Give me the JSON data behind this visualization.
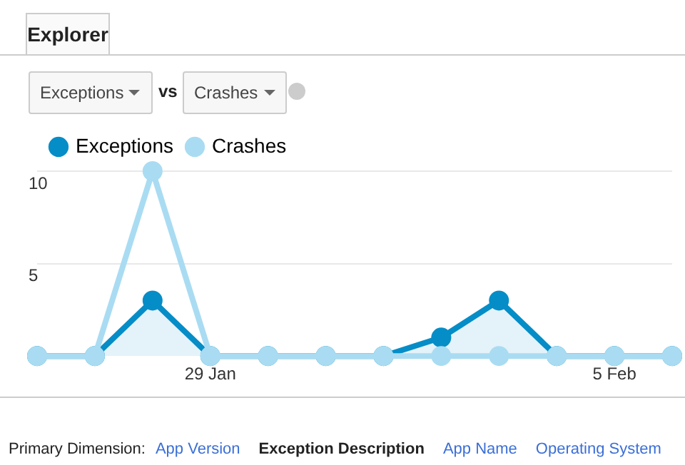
{
  "chart_data": {
    "type": "line",
    "annotations": [
      "Explorer",
      "Exceptions",
      "vs",
      "Crashes",
      "Primary Dimension:",
      "App Version",
      "Exception Description",
      "App Name",
      "Operating System"
    ],
    "categories": [
      null,
      null,
      null,
      "29 Jan",
      null,
      null,
      null,
      null,
      null,
      null,
      "5 Feb",
      null
    ],
    "series": [
      {
        "name": "Exceptions",
        "type": "area",
        "color": "#058dc7",
        "values": [
          0,
          0,
          3,
          0,
          0,
          0,
          0,
          1,
          3,
          0,
          0,
          0
        ]
      },
      {
        "name": "Crashes",
        "color": "#a9dcf2",
        "values": [
          0,
          0,
          10,
          0,
          0,
          0,
          0,
          0,
          0,
          0,
          0,
          0
        ]
      }
    ],
    "ylim": [
      0,
      10
    ],
    "yticks": [
      5,
      10
    ],
    "grid": "y",
    "legend": "top left",
    "marker": "circle",
    "line_style": "solid"
  }
}
